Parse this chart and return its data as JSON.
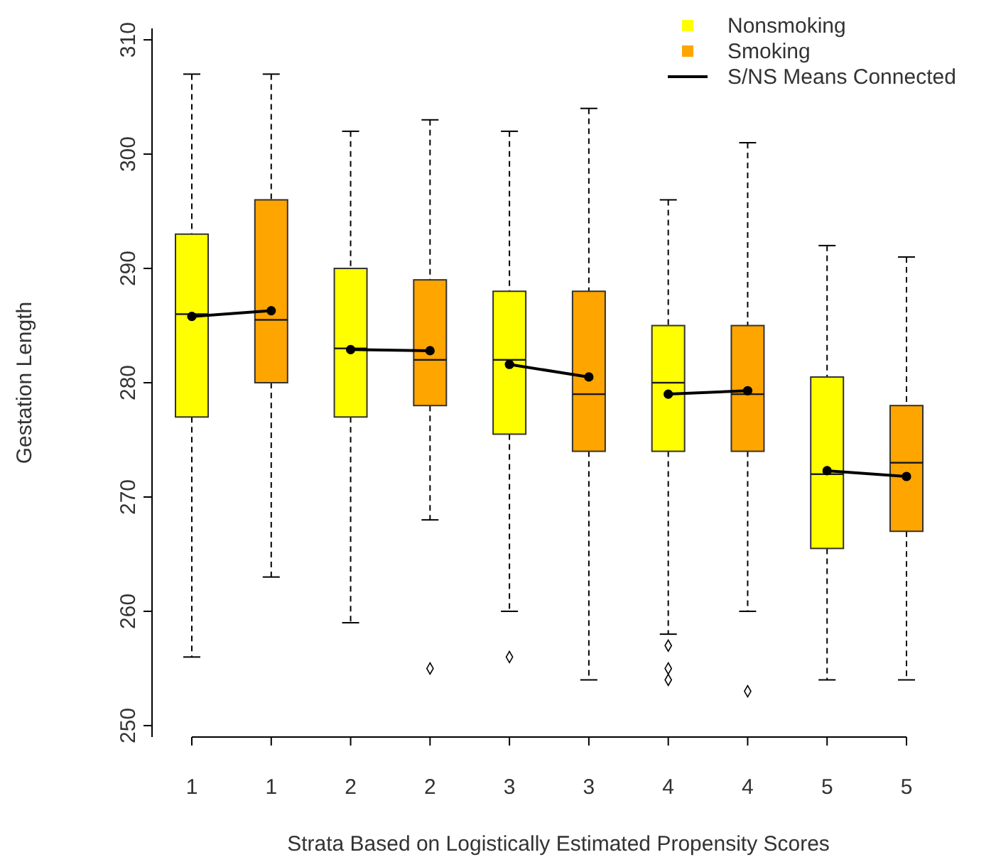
{
  "chart_data": {
    "type": "box",
    "xlabel": "Strata Based on Logistically Estimated Propensity Scores",
    "ylabel": "Gestation Length",
    "categories": [
      "1",
      "1",
      "2",
      "2",
      "3",
      "3",
      "4",
      "4",
      "5",
      "5"
    ],
    "ylim": [
      249,
      311
    ],
    "yticks": [
      250,
      260,
      270,
      280,
      290,
      300,
      310
    ],
    "legend": "top right",
    "grid": false,
    "series": [
      {
        "name": "Nonsmoking",
        "type": "box",
        "color": "#ffff00",
        "boxes": [
          {
            "low": 256,
            "q1": 277,
            "median": 286,
            "q3": 293,
            "high": 307
          },
          null,
          {
            "low": 259,
            "q1": 277,
            "median": 283,
            "q3": 290,
            "high": 302
          },
          null,
          {
            "low": 260,
            "q1": 275.5,
            "median": 282,
            "q3": 288,
            "high": 302,
            "outliers": [
              256
            ]
          },
          null,
          {
            "low": 258,
            "q1": 274,
            "median": 280,
            "q3": 285,
            "high": 296,
            "outliers": [
              257,
              255,
              254
            ]
          },
          null,
          {
            "low": 254,
            "q1": 265.5,
            "median": 272,
            "q3": 280.5,
            "high": 292
          },
          null
        ]
      },
      {
        "name": "Smoking",
        "type": "box",
        "color": "#ffa500",
        "boxes": [
          null,
          {
            "low": 263,
            "q1": 280,
            "median": 285.5,
            "q3": 296,
            "high": 307
          },
          null,
          {
            "low": 268,
            "q1": 278,
            "median": 282,
            "q3": 289,
            "high": 303,
            "outliers": [
              255
            ]
          },
          null,
          {
            "low": 254,
            "q1": 274,
            "median": 279,
            "q3": 288,
            "high": 304
          },
          null,
          {
            "low": 260,
            "q1": 274,
            "median": 279,
            "q3": 285,
            "high": 301,
            "outliers": [
              253
            ]
          },
          null,
          {
            "low": 254,
            "q1": 267,
            "median": 273,
            "q3": 278,
            "high": 291
          }
        ]
      },
      {
        "name": "S/NS Means Connected",
        "type": "line",
        "color": "#000000",
        "marker": "circle",
        "values": [
          285.8,
          286.3,
          282.9,
          282.8,
          281.6,
          280.5,
          279,
          279.3,
          272.3,
          271.8
        ]
      }
    ]
  }
}
